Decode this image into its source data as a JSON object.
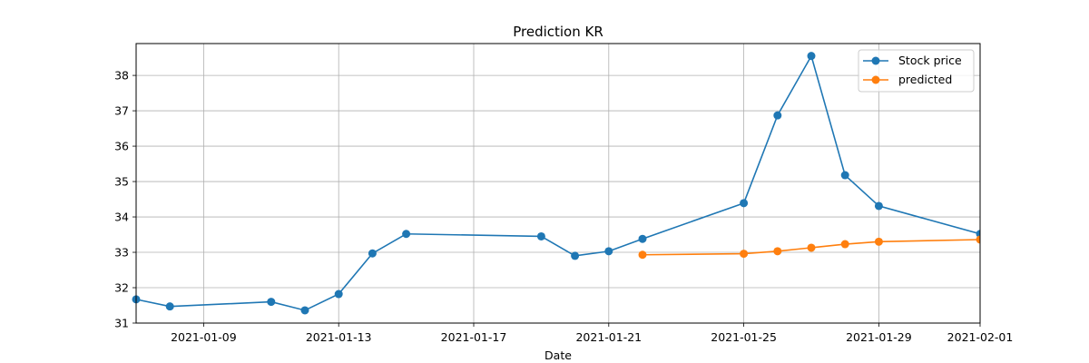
{
  "chart_data": {
    "type": "line",
    "title": "Prediction KR",
    "xlabel": "Date",
    "ylabel": "",
    "xlim": [
      "2021-01-07",
      "2021-02-01"
    ],
    "ylim": [
      31,
      38.9
    ],
    "xticks": [
      "2021-01-09",
      "2021-01-13",
      "2021-01-17",
      "2021-01-21",
      "2021-01-25",
      "2021-01-29",
      "2021-02-01"
    ],
    "yticks": [
      31,
      32,
      33,
      34,
      35,
      36,
      37,
      38
    ],
    "grid": true,
    "legend_position": "top-right",
    "series": [
      {
        "name": "Stock price",
        "color": "#1f77b4",
        "marker": "circle",
        "points": [
          [
            "2021-01-07",
            31.67
          ],
          [
            "2021-01-08",
            31.47
          ],
          [
            "2021-01-11",
            31.6
          ],
          [
            "2021-01-12",
            31.36
          ],
          [
            "2021-01-13",
            31.82
          ],
          [
            "2021-01-14",
            32.97
          ],
          [
            "2021-01-15",
            33.52
          ],
          [
            "2021-01-19",
            33.45
          ],
          [
            "2021-01-20",
            32.9
          ],
          [
            "2021-01-21",
            33.03
          ],
          [
            "2021-01-22",
            33.38
          ],
          [
            "2021-01-25",
            34.39
          ],
          [
            "2021-01-26",
            36.87
          ],
          [
            "2021-01-27",
            38.55
          ],
          [
            "2021-01-28",
            35.18
          ],
          [
            "2021-01-29",
            34.31
          ],
          [
            "2021-02-01",
            33.52
          ]
        ]
      },
      {
        "name": "predicted",
        "color": "#ff7f0e",
        "marker": "circle",
        "points": [
          [
            "2021-01-22",
            32.93
          ],
          [
            "2021-01-25",
            32.96
          ],
          [
            "2021-01-26",
            33.03
          ],
          [
            "2021-01-27",
            33.13
          ],
          [
            "2021-01-28",
            33.23
          ],
          [
            "2021-01-29",
            33.3
          ],
          [
            "2021-02-01",
            33.36
          ]
        ]
      }
    ]
  }
}
